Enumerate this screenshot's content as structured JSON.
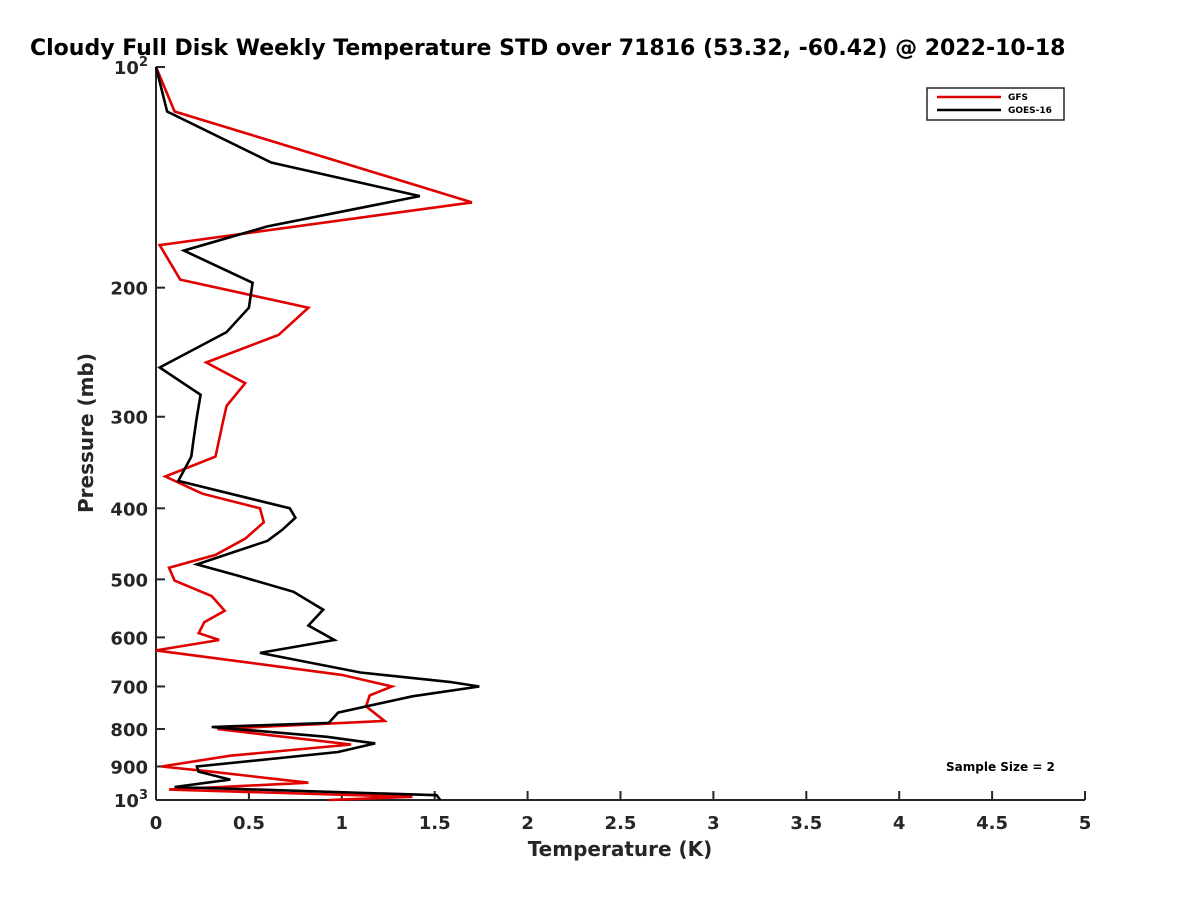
{
  "chart_data": {
    "type": "line",
    "title": "Cloudy Full Disk Weekly Temperature STD over 71816 (53.32, -60.42) @ 2022-10-18",
    "xlabel": "Temperature (K)",
    "ylabel": "Pressure (mb)",
    "xlim": [
      0,
      5
    ],
    "ylim": [
      100,
      1000
    ],
    "y_scale": "log",
    "y_reversed": true,
    "x_ticks": [
      0,
      0.5,
      1,
      1.5,
      2,
      2.5,
      3,
      3.5,
      4,
      4.5,
      5
    ],
    "x_tick_labels": [
      "0",
      "0.5",
      "1",
      "1.5",
      "2",
      "2.5",
      "3",
      "3.5",
      "4",
      "4.5",
      "5"
    ],
    "y_ticks": [
      100,
      200,
      300,
      400,
      500,
      600,
      700,
      800,
      900,
      1000
    ],
    "y_tick_labels": [
      {
        "base": "10",
        "exp": "2"
      },
      {
        "base": "200",
        "exp": ""
      },
      {
        "base": "300",
        "exp": ""
      },
      {
        "base": "400",
        "exp": ""
      },
      {
        "base": "500",
        "exp": ""
      },
      {
        "base": "600",
        "exp": ""
      },
      {
        "base": "700",
        "exp": ""
      },
      {
        "base": "800",
        "exp": ""
      },
      {
        "base": "900",
        "exp": ""
      },
      {
        "base": "10",
        "exp": "3"
      }
    ],
    "grid": false,
    "legend_position": "top-right",
    "annotation": "Sample Size = 2",
    "series": [
      {
        "name": "GFS",
        "color": "#e00000",
        "points": [
          [
            0.0,
            100
          ],
          [
            0.1,
            115
          ],
          [
            1.0,
            135
          ],
          [
            1.7,
            153
          ],
          [
            0.02,
            175
          ],
          [
            0.13,
            195
          ],
          [
            0.82,
            213
          ],
          [
            0.66,
            232
          ],
          [
            0.27,
            253
          ],
          [
            0.48,
            270
          ],
          [
            0.38,
            290
          ],
          [
            0.36,
            305
          ],
          [
            0.32,
            340
          ],
          [
            0.05,
            362
          ],
          [
            0.25,
            382
          ],
          [
            0.56,
            400
          ],
          [
            0.58,
            418
          ],
          [
            0.48,
            440
          ],
          [
            0.32,
            463
          ],
          [
            0.07,
            482
          ],
          [
            0.1,
            502
          ],
          [
            0.3,
            527
          ],
          [
            0.37,
            552
          ],
          [
            0.26,
            572
          ],
          [
            0.23,
            592
          ],
          [
            0.34,
            605
          ],
          [
            0.0,
            625
          ],
          [
            1.0,
            675
          ],
          [
            1.27,
            700
          ],
          [
            1.15,
            720
          ],
          [
            1.13,
            745
          ],
          [
            1.23,
            780
          ],
          [
            0.33,
            800
          ],
          [
            0.6,
            815
          ],
          [
            1.05,
            840
          ],
          [
            0.4,
            870
          ],
          [
            0.03,
            900
          ],
          [
            0.3,
            915
          ],
          [
            0.82,
            947
          ],
          [
            0.07,
            968
          ],
          [
            1.38,
            990
          ],
          [
            0.93,
            1000
          ]
        ]
      },
      {
        "name": "GOES-16",
        "color": "#000000",
        "points": [
          [
            0.0,
            100
          ],
          [
            0.06,
            115
          ],
          [
            0.62,
            135
          ],
          [
            1.42,
            150
          ],
          [
            0.6,
            165
          ],
          [
            0.15,
            178
          ],
          [
            0.52,
            197
          ],
          [
            0.5,
            213
          ],
          [
            0.38,
            230
          ],
          [
            0.02,
            257
          ],
          [
            0.24,
            280
          ],
          [
            0.22,
            300
          ],
          [
            0.2,
            325
          ],
          [
            0.19,
            340
          ],
          [
            0.12,
            367
          ],
          [
            0.72,
            400
          ],
          [
            0.75,
            412
          ],
          [
            0.68,
            428
          ],
          [
            0.6,
            443
          ],
          [
            0.22,
            477
          ],
          [
            0.45,
            495
          ],
          [
            0.74,
            520
          ],
          [
            0.9,
            550
          ],
          [
            0.82,
            578
          ],
          [
            0.96,
            605
          ],
          [
            0.56,
            630
          ],
          [
            1.1,
            670
          ],
          [
            1.58,
            690
          ],
          [
            1.74,
            700
          ],
          [
            1.38,
            722
          ],
          [
            0.98,
            760
          ],
          [
            0.93,
            785
          ],
          [
            0.3,
            795
          ],
          [
            0.92,
            820
          ],
          [
            1.18,
            837
          ],
          [
            0.98,
            860
          ],
          [
            0.22,
            900
          ],
          [
            0.23,
            915
          ],
          [
            0.4,
            938
          ],
          [
            0.1,
            960
          ],
          [
            1.51,
            985
          ],
          [
            1.53,
            1000
          ]
        ]
      }
    ]
  }
}
